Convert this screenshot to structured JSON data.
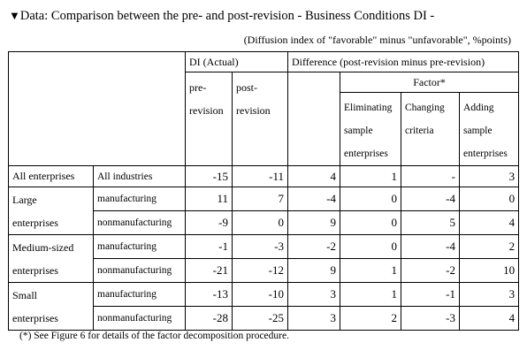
{
  "title_marker": "▼",
  "title": "Data: Comparison between the pre- and post-revision - Business Conditions DI -",
  "subtitle": "(Diffusion index of \"favorable\" minus \"unfavorable\", %points)",
  "headers": {
    "di_actual": "DI (Actual)",
    "pre_1": "pre-",
    "pre_2": "revision",
    "post_1": "post-",
    "post_2": "revision",
    "difference": "Difference (post-revision minus pre-revision)",
    "factor": "Factor*",
    "elim_1": "Eliminating",
    "elim_2": "sample",
    "elim_3": "enterprises",
    "chg_1": "Changing",
    "chg_2": "criteria",
    "add_1": "Adding",
    "add_2": "sample",
    "add_3": "enterprises"
  },
  "groups": {
    "all": "All enterprises",
    "large_1": "Large",
    "large_2": "enterprises",
    "medium_1": "Medium-sized",
    "medium_2": "enterprises",
    "small_1": "Small",
    "small_2": "enterprises"
  },
  "rows": [
    {
      "industry": "All industries",
      "pre": "-15",
      "post": "-11",
      "diff": "4",
      "elim": "1",
      "chg": "-",
      "add": "3"
    },
    {
      "industry": "manufacturing",
      "pre": "11",
      "post": "7",
      "diff": "-4",
      "elim": "0",
      "chg": "-4",
      "add": "0"
    },
    {
      "industry": "nonmanufacturing",
      "pre": "-9",
      "post": "0",
      "diff": "9",
      "elim": "0",
      "chg": "5",
      "add": "4"
    },
    {
      "industry": "manufacturing",
      "pre": "-1",
      "post": "-3",
      "diff": "-2",
      "elim": "0",
      "chg": "-4",
      "add": "2"
    },
    {
      "industry": "nonmanufacturing",
      "pre": "-21",
      "post": "-12",
      "diff": "9",
      "elim": "1",
      "chg": "-2",
      "add": "10"
    },
    {
      "industry": "manufacturing",
      "pre": "-13",
      "post": "-10",
      "diff": "3",
      "elim": "1",
      "chg": "-1",
      "add": "3"
    },
    {
      "industry": "nonmanufacturing",
      "pre": "-28",
      "post": "-25",
      "diff": "3",
      "elim": "2",
      "chg": "-3",
      "add": "4"
    }
  ],
  "footnote": "(*) See Figure 6 for details of the factor decomposition procedure."
}
